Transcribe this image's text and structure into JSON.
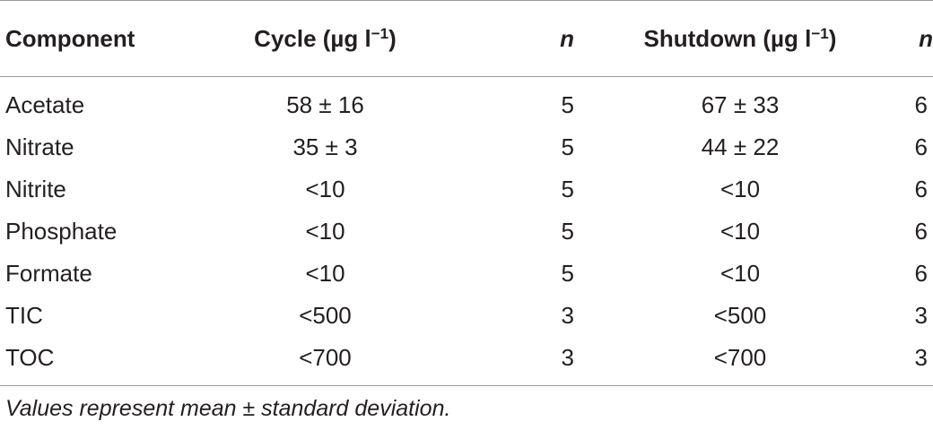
{
  "table": {
    "headers": {
      "component": "Component",
      "cycle_main": "Cycle (µg l",
      "cycle_sup": "−1",
      "cycle_close": ")",
      "n1": "n",
      "shutdown_main": "Shutdown (µg l",
      "shutdown_sup": "−1",
      "shutdown_close": ")",
      "n2": "n"
    },
    "rows": [
      {
        "component": "Acetate",
        "cycle": "58 ± 16",
        "n1": "5",
        "shutdown": "67 ± 33",
        "n2": "6"
      },
      {
        "component": "Nitrate",
        "cycle": "35 ± 3",
        "n1": "5",
        "shutdown": "44 ± 22",
        "n2": "6"
      },
      {
        "component": "Nitrite",
        "cycle": "<10",
        "n1": "5",
        "shutdown": "<10",
        "n2": "6"
      },
      {
        "component": "Phosphate",
        "cycle": "<10",
        "n1": "5",
        "shutdown": "<10",
        "n2": "6"
      },
      {
        "component": "Formate",
        "cycle": "<10",
        "n1": "5",
        "shutdown": "<10",
        "n2": "6"
      },
      {
        "component": "TIC",
        "cycle": "<500",
        "n1": "3",
        "shutdown": "<500",
        "n2": "3"
      },
      {
        "component": "TOC",
        "cycle": "<700",
        "n1": "3",
        "shutdown": "<700",
        "n2": "3"
      }
    ]
  },
  "footnote": "Values represent mean ± standard deviation."
}
